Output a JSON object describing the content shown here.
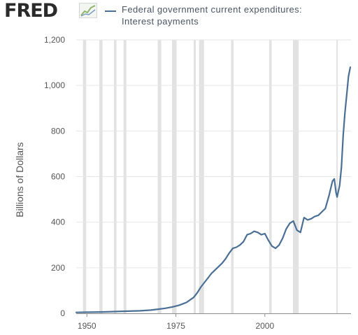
{
  "header": {
    "logo_text": "FRED",
    "logo_icon": "chart-line-icon",
    "legend_line1": "Federal government current expenditures:",
    "legend_line2": "Interest payments"
  },
  "chart_data": {
    "type": "line",
    "title": "",
    "ylabel": "Billions of Dollars",
    "xlabel": "",
    "xlim": [
      1947,
      2024.2
    ],
    "ylim": [
      0,
      1200
    ],
    "x_ticks": [
      1950,
      1975,
      2000
    ],
    "y_ticks": [
      0,
      200,
      400,
      600,
      800,
      1000,
      1200
    ],
    "y_tick_labels": [
      "0",
      "200",
      "400",
      "600",
      "800",
      "1,000",
      "1,200"
    ],
    "grid": "horizontal",
    "legend": "top",
    "recessions": [
      [
        1948.9,
        1949.8
      ],
      [
        1953.5,
        1954.4
      ],
      [
        1957.6,
        1958.3
      ],
      [
        1960.3,
        1961.1
      ],
      [
        1969.9,
        1970.9
      ],
      [
        1973.9,
        1975.2
      ],
      [
        1980.0,
        1980.6
      ],
      [
        1981.5,
        1982.9
      ],
      [
        1990.5,
        1991.2
      ],
      [
        2001.2,
        2001.9
      ],
      [
        2007.9,
        2009.5
      ],
      [
        2020.1,
        2020.4
      ]
    ],
    "series": [
      {
        "color": "#4a6f95",
        "points": [
          [
            1947,
            4
          ],
          [
            1950,
            5
          ],
          [
            1955,
            6
          ],
          [
            1960,
            9
          ],
          [
            1965,
            11
          ],
          [
            1968,
            14
          ],
          [
            1970,
            18
          ],
          [
            1972,
            22
          ],
          [
            1974,
            28
          ],
          [
            1976,
            36
          ],
          [
            1978,
            48
          ],
          [
            1980,
            70
          ],
          [
            1981,
            90
          ],
          [
            1982,
            115
          ],
          [
            1983,
            135
          ],
          [
            1984,
            155
          ],
          [
            1985,
            175
          ],
          [
            1986,
            190
          ],
          [
            1987,
            205
          ],
          [
            1988,
            220
          ],
          [
            1989,
            240
          ],
          [
            1990,
            265
          ],
          [
            1991,
            285
          ],
          [
            1992,
            290
          ],
          [
            1993,
            300
          ],
          [
            1994,
            315
          ],
          [
            1995,
            345
          ],
          [
            1996,
            350
          ],
          [
            1997,
            360
          ],
          [
            1998,
            355
          ],
          [
            1999,
            345
          ],
          [
            2000,
            350
          ],
          [
            2001,
            320
          ],
          [
            2002,
            295
          ],
          [
            2003,
            285
          ],
          [
            2004,
            300
          ],
          [
            2005,
            330
          ],
          [
            2006,
            370
          ],
          [
            2007,
            395
          ],
          [
            2008,
            405
          ],
          [
            2009,
            365
          ],
          [
            2010,
            355
          ],
          [
            2011,
            420
          ],
          [
            2012,
            410
          ],
          [
            2013,
            415
          ],
          [
            2014,
            425
          ],
          [
            2015,
            430
          ],
          [
            2016,
            445
          ],
          [
            2017,
            460
          ],
          [
            2018,
            515
          ],
          [
            2019,
            580
          ],
          [
            2019.5,
            590
          ],
          [
            2020,
            530
          ],
          [
            2020.3,
            510
          ],
          [
            2021,
            560
          ],
          [
            2021.5,
            640
          ],
          [
            2022,
            780
          ],
          [
            2022.5,
            880
          ],
          [
            2023,
            960
          ],
          [
            2023.5,
            1040
          ],
          [
            2024,
            1080
          ]
        ]
      }
    ]
  }
}
